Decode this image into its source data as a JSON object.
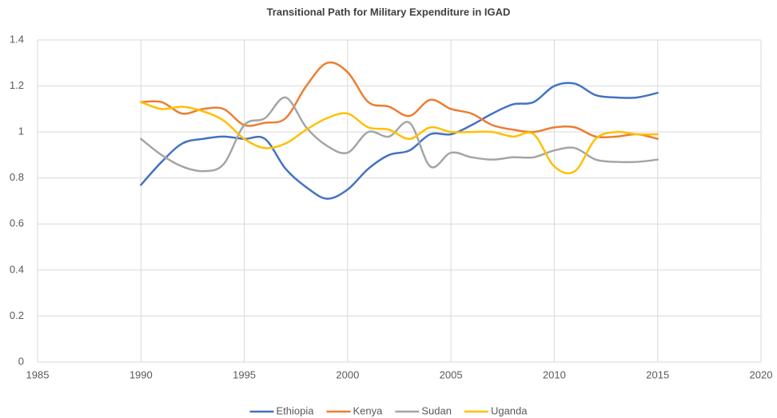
{
  "chart_data": {
    "type": "line",
    "title": "Transitional Path for Military Expenditure in IGAD",
    "x": [
      1990,
      1991,
      1992,
      1993,
      1994,
      1995,
      1996,
      1997,
      1998,
      1999,
      2000,
      2001,
      2002,
      2003,
      2004,
      2005,
      2006,
      2007,
      2008,
      2009,
      2010,
      2011,
      2012,
      2013,
      2014,
      2015
    ],
    "series": [
      {
        "name": "Ethiopia",
        "color": "#4472c4",
        "values": [
          0.77,
          0.87,
          0.95,
          0.97,
          0.98,
          0.97,
          0.97,
          0.84,
          0.76,
          0.71,
          0.75,
          0.84,
          0.9,
          0.92,
          0.99,
          0.99,
          1.03,
          1.08,
          1.12,
          1.13,
          1.2,
          1.21,
          1.16,
          1.15,
          1.15,
          1.17
        ]
      },
      {
        "name": "Kenya",
        "color": "#ed7d31",
        "values": [
          1.13,
          1.13,
          1.08,
          1.1,
          1.1,
          1.03,
          1.04,
          1.06,
          1.2,
          1.3,
          1.26,
          1.13,
          1.11,
          1.07,
          1.14,
          1.1,
          1.08,
          1.03,
          1.01,
          1.0,
          1.02,
          1.02,
          0.98,
          0.98,
          0.99,
          0.97
        ]
      },
      {
        "name": "Sudan",
        "color": "#a5a5a5",
        "values": [
          0.97,
          0.9,
          0.85,
          0.83,
          0.86,
          1.03,
          1.06,
          1.15,
          1.02,
          0.94,
          0.91,
          1.0,
          0.98,
          1.04,
          0.85,
          0.91,
          0.89,
          0.88,
          0.89,
          0.89,
          0.92,
          0.93,
          0.88,
          0.87,
          0.87,
          0.88
        ]
      },
      {
        "name": "Uganda",
        "color": "#ffc000",
        "values": [
          1.13,
          1.1,
          1.11,
          1.09,
          1.05,
          0.97,
          0.93,
          0.95,
          1.01,
          1.06,
          1.08,
          1.02,
          1.01,
          0.97,
          1.02,
          1.0,
          1.0,
          1.0,
          0.98,
          0.99,
          0.85,
          0.83,
          0.97,
          1.0,
          0.99,
          0.99
        ]
      }
    ],
    "xlim": [
      1985,
      2020
    ],
    "xticks": [
      1985,
      1990,
      1995,
      2000,
      2005,
      2010,
      2015,
      2020
    ],
    "ylim": [
      0,
      1.4
    ],
    "yticks": [
      0,
      0.2,
      0.4,
      0.6,
      0.8,
      1,
      1.2,
      1.4
    ],
    "grid": true,
    "legend": "bottom"
  }
}
